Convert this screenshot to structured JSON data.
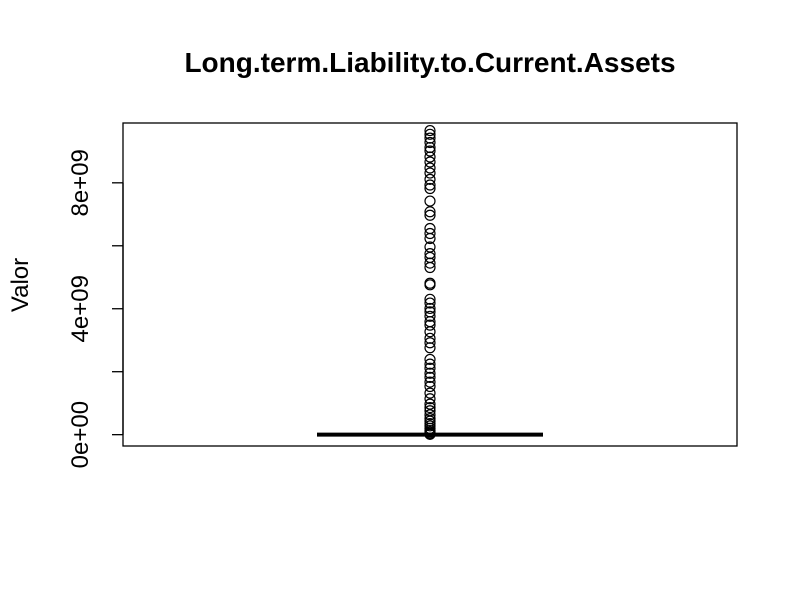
{
  "chart_data": {
    "type": "boxplot",
    "title": "Long.term.Liability.to.Current.Assets",
    "xlabel": "",
    "ylabel": "Valor",
    "ylim": [
      -360000000,
      9900000000
    ],
    "y_ticks": [
      0,
      2000000000,
      4000000000,
      6000000000,
      8000000000
    ],
    "y_tick_labels": [
      "0e+00",
      "",
      "4e+09",
      "",
      "8e+09"
    ],
    "grid": false,
    "legend": "none",
    "colors": {
      "box": "#000000",
      "outlier": "#000000",
      "background": "#ffffff"
    },
    "box": {
      "min": 0,
      "q1": 0,
      "median": 0,
      "q3": 0,
      "max": 0
    },
    "outliers": [
      9660000000,
      9540000000,
      9420000000,
      9280000000,
      9120000000,
      9010000000,
      8820000000,
      8660000000,
      8470000000,
      8310000000,
      8110000000,
      7930000000,
      7820000000,
      7420000000,
      7080000000,
      6970000000,
      6550000000,
      6390000000,
      6230000000,
      5960000000,
      5750000000,
      5630000000,
      5450000000,
      5310000000,
      4810000000,
      4760000000,
      4300000000,
      4180000000,
      4010000000,
      3900000000,
      3760000000,
      3590000000,
      3480000000,
      3270000000,
      3060000000,
      2920000000,
      2760000000,
      2390000000,
      2240000000,
      2110000000,
      1950000000,
      1820000000,
      1670000000,
      1530000000,
      1320000000,
      1140000000,
      970000000,
      860000000,
      760000000,
      630000000,
      510000000,
      430000000,
      350000000,
      280000000,
      200000000,
      130000000,
      80000000,
      40000000,
      10000000
    ]
  }
}
